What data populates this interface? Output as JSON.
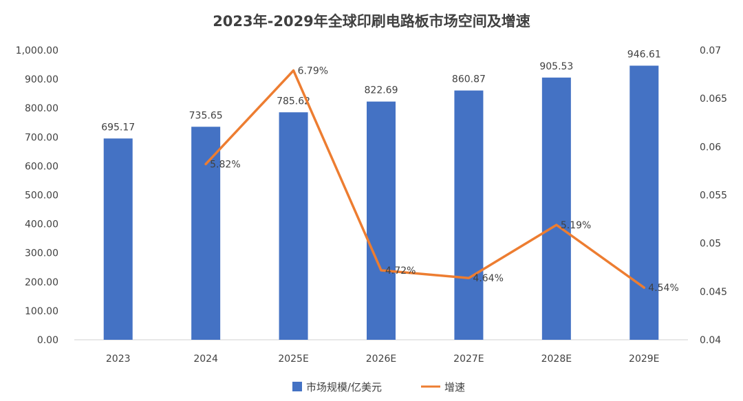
{
  "chart_data": {
    "type": "bar+line",
    "title": "2023年-2029年全球印刷电路板市场空间及增速",
    "categories": [
      "2023",
      "2024",
      "2025E",
      "2026E",
      "2027E",
      "2028E",
      "2029E"
    ],
    "series": [
      {
        "name": "市场规模/亿美元",
        "type": "bar",
        "axis": "left",
        "color": "#4472C4",
        "values": [
          695.17,
          735.65,
          785.62,
          822.69,
          860.87,
          905.53,
          946.61
        ],
        "labels": [
          "695.17",
          "735.65",
          "785.62",
          "822.69",
          "860.87",
          "905.53",
          "946.61"
        ]
      },
      {
        "name": "增速",
        "type": "line",
        "axis": "right",
        "color": "#ED7D31",
        "values": [
          null,
          0.0582,
          0.0679,
          0.0472,
          0.0464,
          0.0519,
          0.0454
        ],
        "labels": [
          null,
          "5.82%",
          "6.79%",
          "4.72%",
          "4.64%",
          "5.19%",
          "4.54%"
        ]
      }
    ],
    "y_left": {
      "ylim": [
        0,
        1000
      ],
      "ticks": [
        0,
        100,
        200,
        300,
        400,
        500,
        600,
        700,
        800,
        900,
        1000
      ],
      "tick_labels": [
        "0.00",
        "100.00",
        "200.00",
        "300.00",
        "400.00",
        "500.00",
        "600.00",
        "700.00",
        "800.00",
        "900.00",
        "1,000.00"
      ]
    },
    "y_right": {
      "ylim": [
        0.04,
        0.07
      ],
      "ticks": [
        0.04,
        0.045,
        0.05,
        0.055,
        0.06,
        0.065,
        0.07
      ],
      "tick_labels": [
        "0.04",
        "0.045",
        "0.05",
        "0.055",
        "0.06",
        "0.065",
        "0.07"
      ]
    },
    "grid": false,
    "legend_position": "bottom"
  }
}
